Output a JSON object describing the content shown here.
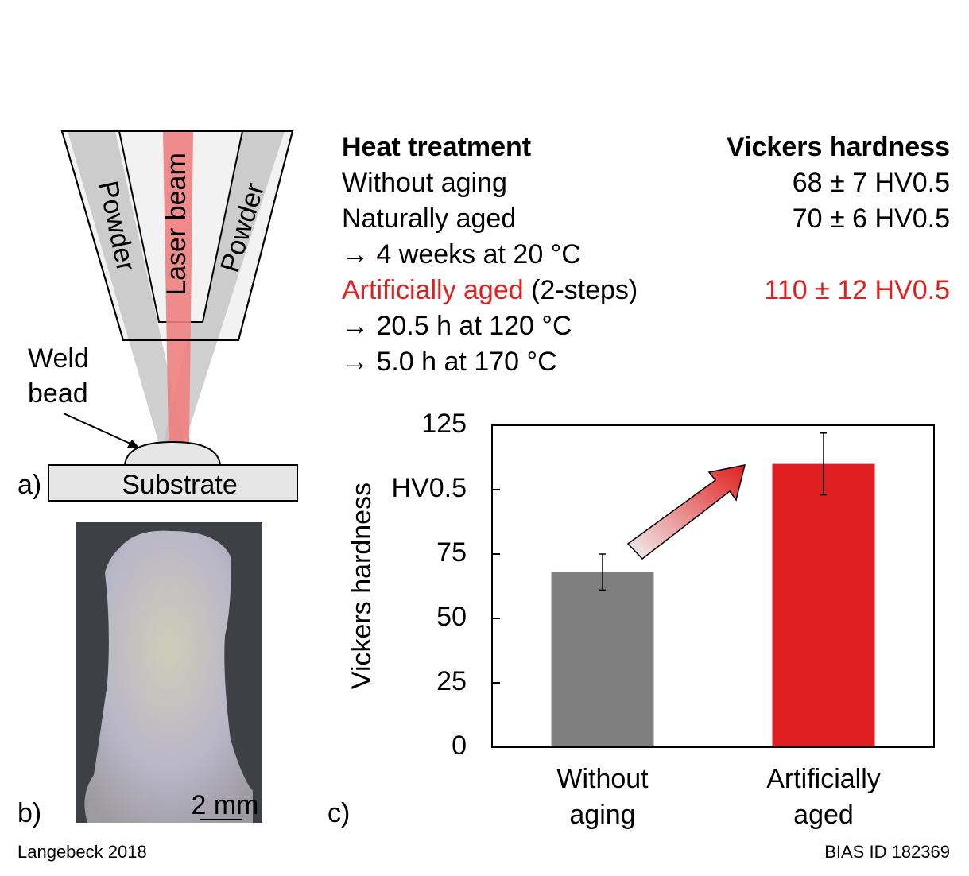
{
  "diagram": {
    "label_a": "a)",
    "label_b": "b)",
    "label_c": "c)",
    "powder_left": "Powder",
    "laser": "Laser beam",
    "powder_right": "Powder",
    "weld_bead": [
      "Weld",
      "bead"
    ],
    "substrate": "Substrate",
    "scale": "2 mm"
  },
  "table": {
    "header": [
      "Heat treatment",
      "Vickers hardness"
    ],
    "rows": [
      {
        "treatment": "Without aging",
        "hardness": "68 ± 7 HV0.5"
      },
      {
        "treatment": "Naturally aged",
        "hardness": "70 ± 6 HV0.5",
        "steps": [
          "→ 4 weeks at 20 °C"
        ]
      },
      {
        "treatment": "Artificially aged",
        "note": "(2-steps)",
        "hardness": "110 ± 12 HV0.5",
        "steps": [
          "→ 20.5 h at 120 °C",
          "→ 5.0 h at 170 °C"
        ]
      }
    ]
  },
  "chart_data": {
    "type": "bar",
    "y_label": "Vickers hardness",
    "categories": [
      "Without aging",
      "Artificially aged"
    ],
    "values": [
      68,
      110
    ],
    "errors": [
      7,
      12
    ],
    "colors": [
      "#7f7f7f",
      "#e02020"
    ],
    "ylim": [
      0,
      125
    ],
    "yticks": [
      0,
      25,
      50,
      75,
      {
        "value": 100,
        "label": "HV0.5"
      },
      125
    ]
  },
  "footer": {
    "left": "Langebeck 2018",
    "right": "BIAS ID 182369"
  }
}
